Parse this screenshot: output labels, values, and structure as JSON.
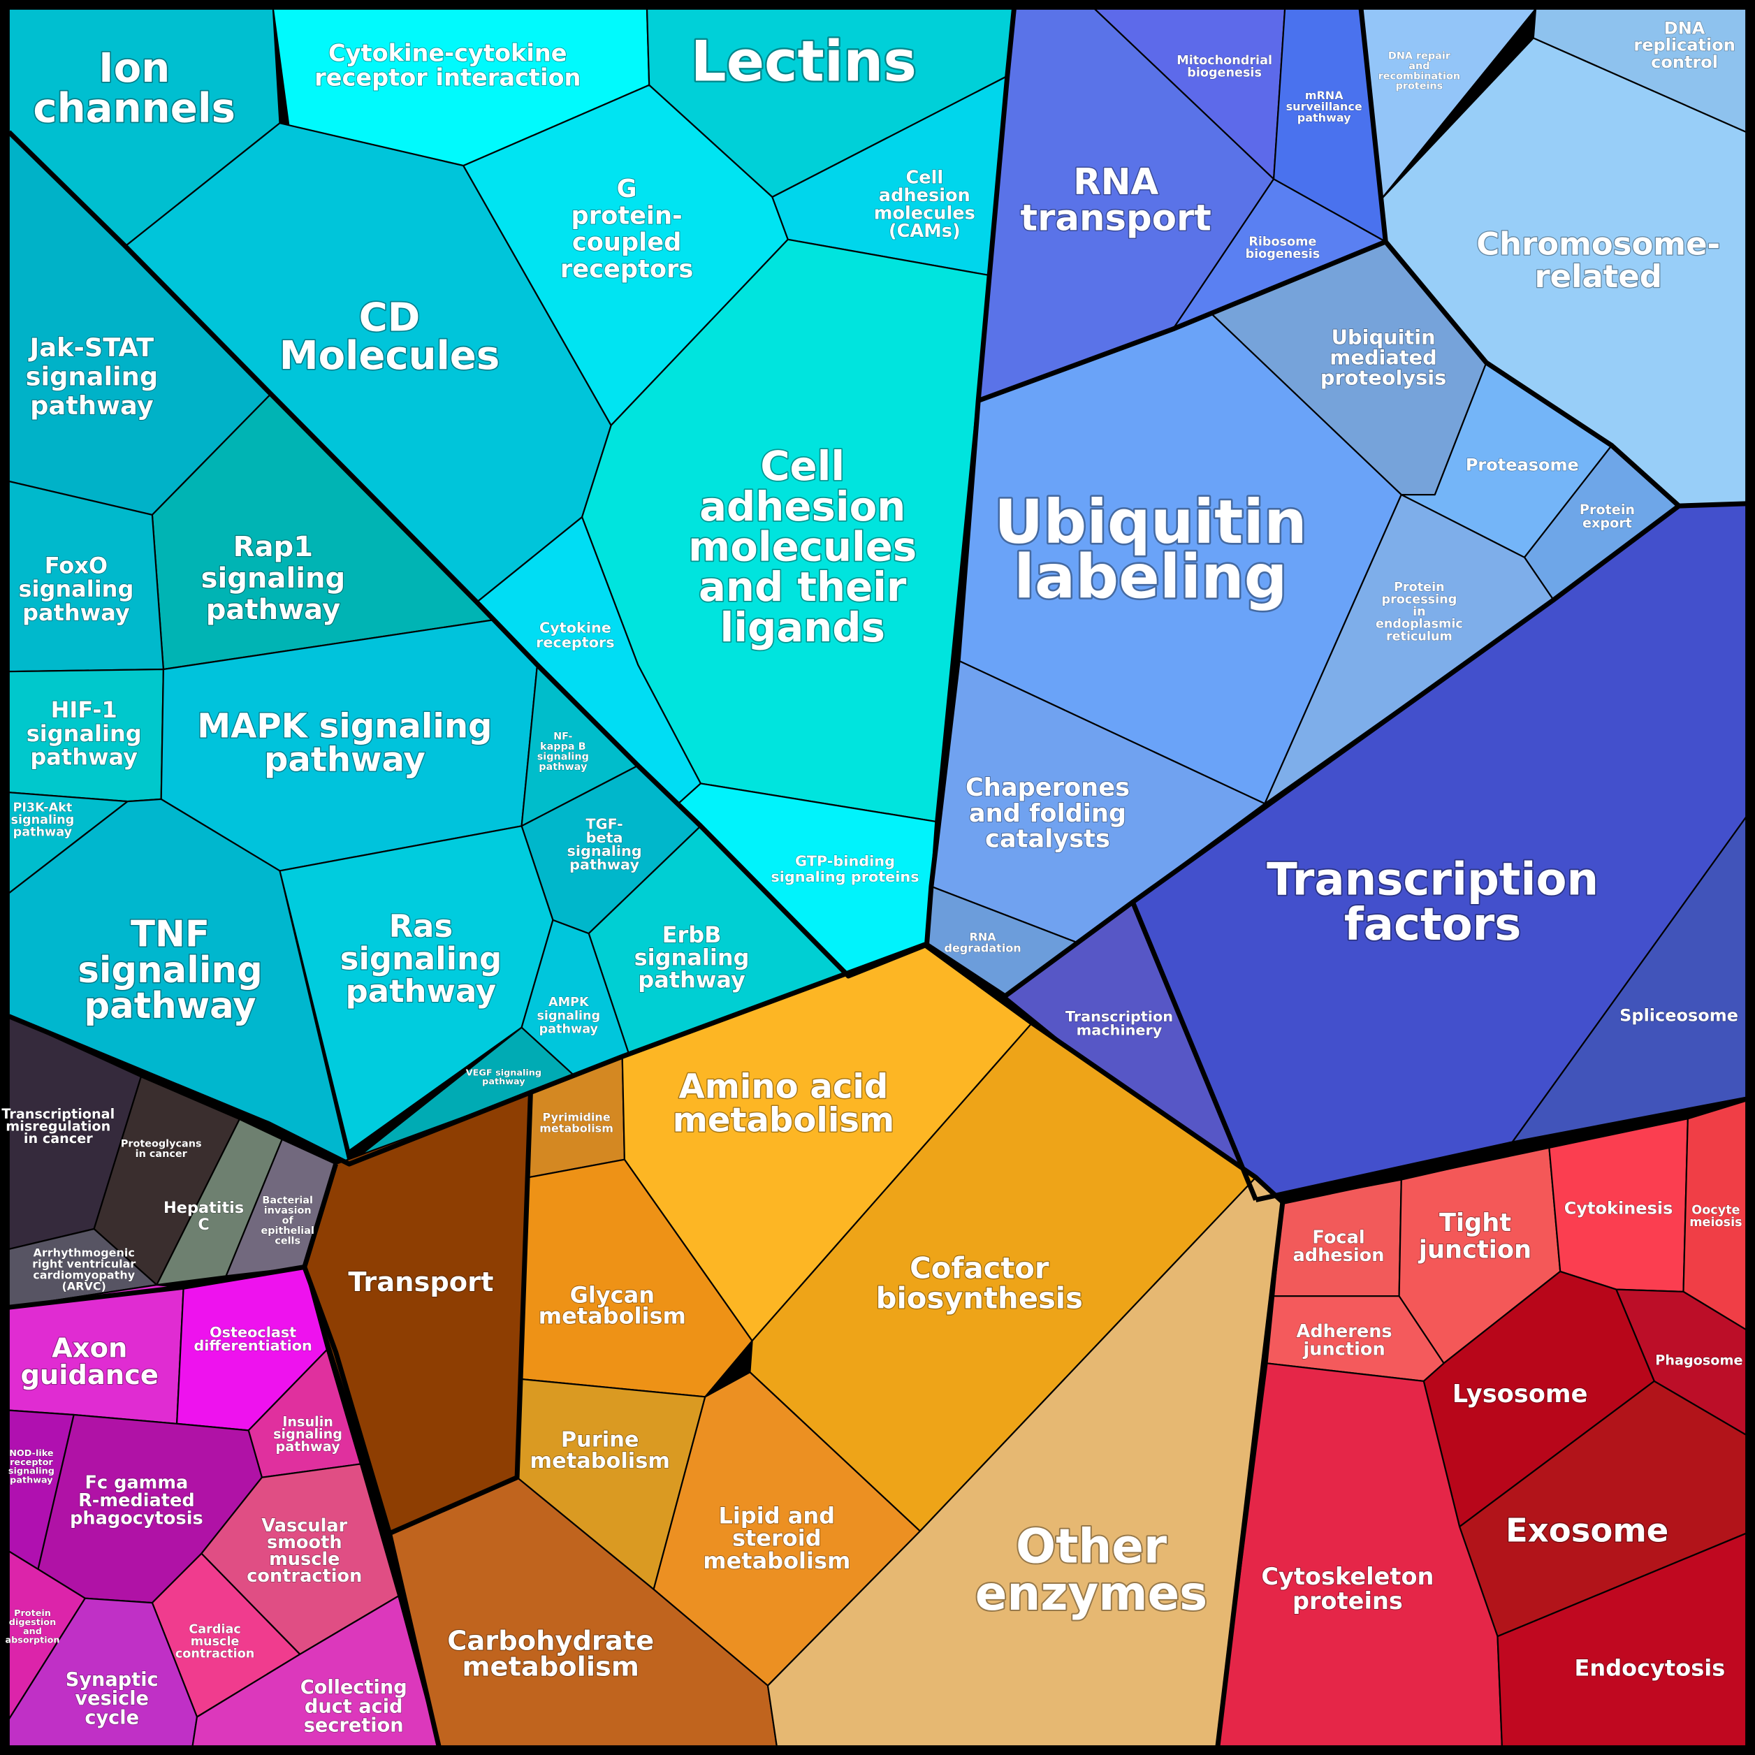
{
  "regions": [
    {
      "id": "ion-channels",
      "label": "Ion\nchannels",
      "color": "#00BFD0"
    },
    {
      "id": "cytokine-cytokine-receptor-interaction",
      "label": "Cytokine-cytokine\nreceptor interaction",
      "color": "#00FAFD"
    },
    {
      "id": "lectins",
      "label": "Lectins",
      "color": "#00D0D8"
    },
    {
      "id": "cd-molecules",
      "label": "CD\nMolecules",
      "color": "#00C5DA"
    },
    {
      "id": "g-protein-coupled-receptors",
      "label": "G\nprotein-\ncoupled\nreceptors",
      "color": "#00E4F2"
    },
    {
      "id": "cell-adhesion-molecules-cams",
      "label": "Cell\nadhesion\nmolecules\n(CAMs)",
      "color": "#00D6EC"
    },
    {
      "id": "cell-adhesion-molecules-and-their-ligands",
      "label": "Cell\nadhesion\nmolecules\nand their\nligands",
      "color": "#00E4DE"
    },
    {
      "id": "jak-stat-signaling-pathway",
      "label": "Jak-STAT\nsignaling\npathway",
      "color": "#00B2C8"
    },
    {
      "id": "rap1-signaling-pathway",
      "label": "Rap1\nsignaling\npathway",
      "color": "#00B4B4"
    },
    {
      "id": "foxo-signaling-pathway",
      "label": "FoxO\nsignaling\npathway",
      "color": "#00B9CC"
    },
    {
      "id": "hif-1-signaling-pathway",
      "label": "HIF-1\nsignaling\npathway",
      "color": "#00C8CC"
    },
    {
      "id": "pi3k-akt-signaling-pathway",
      "label": "PI3K-Akt\nsignaling\npathway",
      "color": "#00BDCD"
    },
    {
      "id": "mapk-signaling-pathway",
      "label": "MAPK signaling\npathway",
      "color": "#00C3DC"
    },
    {
      "id": "cytokine-receptors",
      "label": "Cytokine\nreceptors",
      "color": "#00DDF4"
    },
    {
      "id": "nf-kappa-b-signaling-pathway",
      "label": "NF-\nkappa B\nsignaling\npathway",
      "color": "#00BDCB"
    },
    {
      "id": "tgf-beta-signaling-pathway",
      "label": "TGF-\nbeta\nsignaling\npathway",
      "color": "#00B7CB"
    },
    {
      "id": "gtp-binding-signaling-proteins",
      "label": "GTP-binding\nsignaling proteins",
      "color": "#00F3FC"
    },
    {
      "id": "tnf-signaling-pathway",
      "label": "TNF\nsignaling\npathway",
      "color": "#00B7CE"
    },
    {
      "id": "ras-signaling-pathway",
      "label": "Ras\nsignaling\npathway",
      "color": "#00CCDE"
    },
    {
      "id": "erbb-signaling-pathway",
      "label": "ErbB\nsignaling\npathway",
      "color": "#00CFD3"
    },
    {
      "id": "ampk-signaling-pathway",
      "label": "AMPK\nsignaling\npathway",
      "color": "#00C6DC"
    },
    {
      "id": "vegf-signaling-pathway",
      "label": "VEGF signaling\npathway",
      "color": "#00ABB4"
    },
    {
      "id": "mitochondrial-biogenesis",
      "label": "Mitochondrial\nbiogenesis",
      "color": "#5D6AEA"
    },
    {
      "id": "mrna-surveillance-pathway",
      "label": "mRNA\nsurveillance\npathway",
      "color": "#4A72EE"
    },
    {
      "id": "rna-transport",
      "label": "RNA\ntransport",
      "color": "#5A73E8"
    },
    {
      "id": "ribosome-biogenesis",
      "label": "Ribosome\nbiogenesis",
      "color": "#5A80F2"
    },
    {
      "id": "dna-repair-and-recombination-proteins",
      "label": "DNA repair\nand\nrecombination\nproteins",
      "color": "#93C5F8"
    },
    {
      "id": "dna-replication-control",
      "label": "DNA\nreplication\ncontrol",
      "color": "#8EC2EE"
    },
    {
      "id": "chromosome-related",
      "label": "Chromosome-\nrelated",
      "color": "#98CEF8"
    },
    {
      "id": "ubiquitin-mediated-proteolysis",
      "label": "Ubiquitin\nmediated\nproteolysis",
      "color": "#76A3DA"
    },
    {
      "id": "ubiquitin-labeling",
      "label": "Ubiquitin\nlabeling",
      "color": "#6AA3F8"
    },
    {
      "id": "proteasome",
      "label": "Proteasome",
      "color": "#74B5F8"
    },
    {
      "id": "protein-export",
      "label": "Protein\nexport",
      "color": "#6EA6E8"
    },
    {
      "id": "protein-processing-in-endoplasmic-reticulum",
      "label": "Protein\nprocessing\nin\nendoplasmic\nreticulum",
      "color": "#7EAEEA"
    },
    {
      "id": "chaperones-and-folding-catalysts",
      "label": "Chaperones\nand folding\ncatalysts",
      "color": "#70A2F0"
    },
    {
      "id": "rna-degradation",
      "label": "RNA\ndegradation",
      "color": "#6C9DDB"
    },
    {
      "id": "transcription-factors",
      "label": "Transcription\nfactors",
      "color": "#4350CC"
    },
    {
      "id": "transcription-machinery",
      "label": "Transcription\nmachinery",
      "color": "#5757C6"
    },
    {
      "id": "spliceosome",
      "label": "Spliceosome",
      "color": "#4154BA"
    },
    {
      "id": "transcriptional-misregulation-in-cancer",
      "label": "Transcriptional\nmisregulation\nin cancer",
      "color": "#352A3C"
    },
    {
      "id": "proteoglycans-in-cancer",
      "label": "Proteoglycans\nin cancer",
      "color": "#3A2E2E"
    },
    {
      "id": "hepatitis-c",
      "label": "Hepatitis\nC",
      "color": "#6E8070"
    },
    {
      "id": "bacterial-invasion-of-epithelial-cells",
      "label": "Bacterial\ninvasion\nof\nepithelial\ncells",
      "color": "#72697E"
    },
    {
      "id": "arrhythmogenic-right-ventricular-cardiomyopathy-arvc",
      "label": "Arrhythmogenic\nright ventricular\ncardiomyopathy\n(ARVC)",
      "color": "#575463"
    },
    {
      "id": "axon-guidance",
      "label": "Axon\nguidance",
      "color": "#E02CD2"
    },
    {
      "id": "osteoclast-differentiation",
      "label": "Osteoclast\ndifferentiation",
      "color": "#EE12EE"
    },
    {
      "id": "insulin-signaling-pathway",
      "label": "Insulin\nsignaling\npathway",
      "color": "#E0309E"
    },
    {
      "id": "nod-like-receptor-signaling-pathway",
      "label": "NOD-like\nreceptor\nsignaling\npathway",
      "color": "#B010B0"
    },
    {
      "id": "fc-gamma-r-mediated-phagocytosis",
      "label": "Fc gamma\nR-mediated\nphagocytosis",
      "color": "#B012A6"
    },
    {
      "id": "vascular-smooth-muscle-contraction",
      "label": "Vascular\nsmooth\nmuscle\ncontraction",
      "color": "#E04E84"
    },
    {
      "id": "protein-digestion-and-absorption",
      "label": "Protein\ndigestion\nand\nabsorption",
      "color": "#DC24AA"
    },
    {
      "id": "cardiac-muscle-contraction",
      "label": "Cardiac\nmuscle\ncontraction",
      "color": "#F03C8E"
    },
    {
      "id": "synaptic-vesicle-cycle",
      "label": "Synaptic\nvesicle\ncycle",
      "color": "#C030C6"
    },
    {
      "id": "collecting-duct-acid-secretion",
      "label": "Collecting\nduct acid\nsecretion",
      "color": "#DC38BC"
    },
    {
      "id": "transport",
      "label": "Transport",
      "color": "#8E3E02"
    },
    {
      "id": "pyrimidine-metabolism",
      "label": "Pyrimidine\nmetabolism",
      "color": "#D48822"
    },
    {
      "id": "amino-acid-metabolism",
      "label": "Amino acid\nmetabolism",
      "color": "#FDB624"
    },
    {
      "id": "glycan-metabolism",
      "label": "Glycan\nmetabolism",
      "color": "#EE9216"
    },
    {
      "id": "cofactor-biosynthesis",
      "label": "Cofactor\nbiosynthesis",
      "color": "#EEA418"
    },
    {
      "id": "purine-metabolism",
      "label": "Purine\nmetabolism",
      "color": "#DA9A22"
    },
    {
      "id": "lipid-and-steroid-metabolism",
      "label": "Lipid and\nsteroid\nmetabolism",
      "color": "#EC9022"
    },
    {
      "id": "carbohydrate-metabolism",
      "label": "Carbohydrate\nmetabolism",
      "color": "#C0641E"
    },
    {
      "id": "other-enzymes",
      "label": "Other\nenzymes",
      "color": "#E6B872"
    },
    {
      "id": "focal-adhesion",
      "label": "Focal\nadhesion",
      "color": "#F25A5A"
    },
    {
      "id": "tight-junction",
      "label": "Tight\njunction",
      "color": "#F45858"
    },
    {
      "id": "cytokinesis",
      "label": "Cytokinesis",
      "color": "#FB3E50"
    },
    {
      "id": "oocyte-meiosis",
      "label": "Oocyte\nmeiosis",
      "color": "#F03E46"
    },
    {
      "id": "adherens-junction",
      "label": "Adherens\njunction",
      "color": "#F45A5C"
    },
    {
      "id": "phagosome",
      "label": "Phagosome",
      "color": "#BC0E28"
    },
    {
      "id": "lysosome",
      "label": "Lysosome",
      "color": "#B8061A"
    },
    {
      "id": "exosome",
      "label": "Exosome",
      "color": "#B2141A"
    },
    {
      "id": "cytoskeleton-proteins",
      "label": "Cytoskeleton\nproteins",
      "color": "#E52648"
    },
    {
      "id": "endocytosis",
      "label": "Endocytosis",
      "color": "#C00820"
    }
  ]
}
